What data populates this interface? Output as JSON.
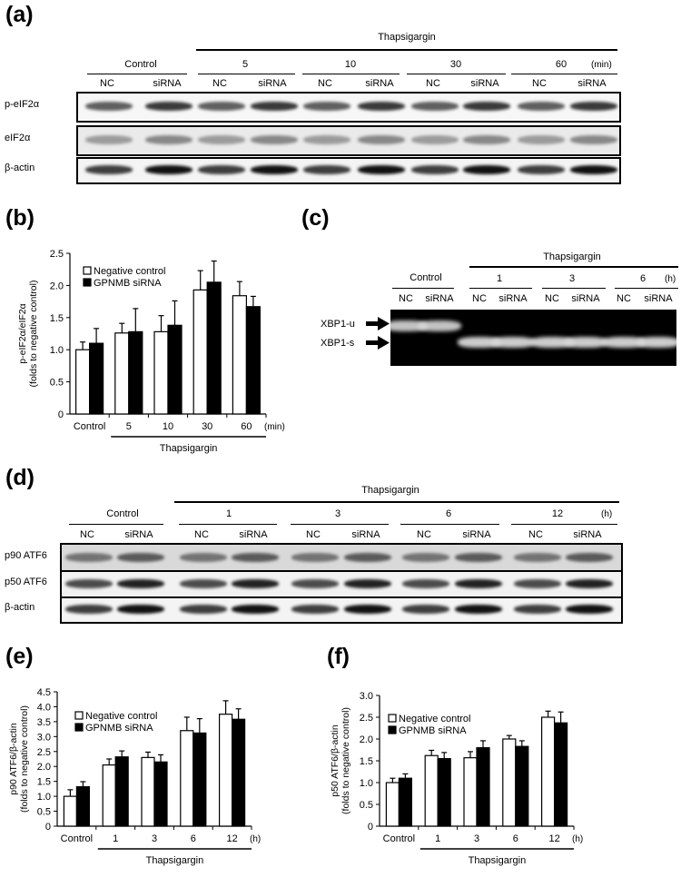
{
  "panel_a": {
    "letter": "(a)",
    "treatment": "Thapsigargin",
    "control": "Control",
    "times": [
      "5",
      "10",
      "30",
      "60"
    ],
    "unit": "(min)",
    "lanes": [
      "NC",
      "siRNA",
      "NC",
      "siRNA",
      "NC",
      "siRNA",
      "NC",
      "siRNA",
      "NC",
      "siRNA"
    ],
    "rows": [
      "p-eIF2α",
      "eIF2α",
      "β-actin"
    ]
  },
  "panel_c": {
    "letter": "(c)",
    "treatment": "Thapsigargin",
    "control": "Control",
    "times": [
      "1",
      "3",
      "6"
    ],
    "unit": "(h)",
    "lanes": [
      "NC",
      "siRNA",
      "NC",
      "siRNA",
      "NC",
      "siRNA",
      "NC",
      "siRNA"
    ],
    "bands": [
      "XBP1-u",
      "XBP1-s"
    ]
  },
  "panel_d": {
    "letter": "(d)",
    "treatment": "Thapsigargin",
    "control": "Control",
    "times": [
      "1",
      "3",
      "6",
      "12"
    ],
    "unit": "(h)",
    "lanes": [
      "NC",
      "siRNA",
      "NC",
      "siRNA",
      "NC",
      "siRNA",
      "NC",
      "siRNA",
      "NC",
      "siRNA"
    ],
    "rows": [
      "p90 ATF6",
      "p50 ATF6",
      "β-actin"
    ]
  },
  "chart_data": [
    {
      "panel": "(b)",
      "type": "bar",
      "categories": [
        "Control",
        "5",
        "10",
        "30",
        "60"
      ],
      "unit": "(min)",
      "group_label": "Thapsigargin",
      "ylabel": "p-eIF2α/eIF2α",
      "ylabel2": "(folds to negative control)",
      "ylim": [
        0,
        2.5
      ],
      "yticks": [
        "0",
        "0.5",
        "1.0",
        "1.5",
        "2.0",
        "2.5"
      ],
      "legend_position": "top-left",
      "series": [
        {
          "name": "Negative control",
          "color": "#ffffff",
          "values": [
            1.0,
            1.26,
            1.28,
            1.93,
            1.84
          ],
          "errors": [
            0.12,
            0.15,
            0.25,
            0.3,
            0.22
          ]
        },
        {
          "name": "GPNMB siRNA",
          "color": "#000000",
          "values": [
            1.1,
            1.28,
            1.38,
            2.05,
            1.67
          ],
          "errors": [
            0.23,
            0.36,
            0.38,
            0.33,
            0.16
          ]
        }
      ]
    },
    {
      "panel": "(e)",
      "type": "bar",
      "categories": [
        "Control",
        "1",
        "3",
        "6",
        "12"
      ],
      "unit": "(h)",
      "group_label": "Thapsigargin",
      "ylabel": "p90 ATF6/β-actin",
      "ylabel2": "(folds to negative control)",
      "ylim": [
        0,
        4.5
      ],
      "yticks": [
        "0",
        "0.5",
        "1.0",
        "1.5",
        "2.0",
        "2.5",
        "3.0",
        "3.5",
        "4.0",
        "4.5"
      ],
      "legend_position": "top-left",
      "series": [
        {
          "name": "Negative control",
          "color": "#ffffff",
          "values": [
            1.0,
            2.05,
            2.3,
            3.2,
            3.75
          ],
          "errors": [
            0.22,
            0.2,
            0.18,
            0.45,
            0.45
          ]
        },
        {
          "name": "GPNMB siRNA",
          "color": "#000000",
          "values": [
            1.32,
            2.32,
            2.15,
            3.12,
            3.58
          ],
          "errors": [
            0.17,
            0.2,
            0.24,
            0.48,
            0.35
          ]
        }
      ]
    },
    {
      "panel": "(f)",
      "type": "bar",
      "categories": [
        "Control",
        "1",
        "3",
        "6",
        "12"
      ],
      "unit": "(h)",
      "group_label": "Thapsigargin",
      "ylabel": "p50 ATF6/β-actin",
      "ylabel2": "(folds to negative control)",
      "ylim": [
        0,
        3.0
      ],
      "yticks": [
        "0",
        "0.5",
        "1.0",
        "1.5",
        "2.0",
        "2.5",
        "3.0"
      ],
      "legend_position": "top-left",
      "series": [
        {
          "name": "Negative control",
          "color": "#ffffff",
          "values": [
            1.0,
            1.62,
            1.57,
            2.0,
            2.5
          ],
          "errors": [
            0.1,
            0.12,
            0.14,
            0.08,
            0.14
          ]
        },
        {
          "name": "GPNMB siRNA",
          "color": "#000000",
          "values": [
            1.1,
            1.55,
            1.8,
            1.83,
            2.37
          ],
          "errors": [
            0.1,
            0.14,
            0.16,
            0.13,
            0.25
          ]
        }
      ]
    }
  ]
}
